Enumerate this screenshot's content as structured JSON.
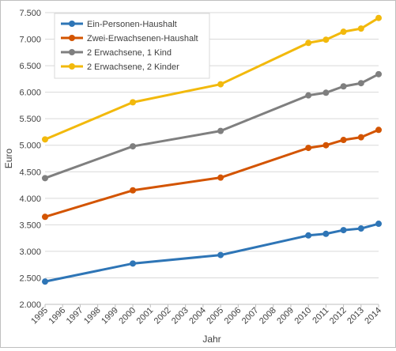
{
  "chart_data": {
    "type": "line",
    "title": "",
    "xlabel": "Jahr",
    "ylabel": "Euro",
    "x_ticks": [
      "1995",
      "1996",
      "1997",
      "1998",
      "1999",
      "2000",
      "2001",
      "2002",
      "2003",
      "2004",
      "2005",
      "2006",
      "2007",
      "2008",
      "2009",
      "2010",
      "2011",
      "2012",
      "2013",
      "2014"
    ],
    "y_ticks": [
      "2.000",
      "2.500",
      "3.000",
      "3.500",
      "4.000",
      "4.500",
      "5.000",
      "5.500",
      "6.000",
      "6.500",
      "7.000",
      "7.500"
    ],
    "ylim": [
      2000,
      7500
    ],
    "xlim": [
      1995,
      2014
    ],
    "grid": "horizontal",
    "legend_position": "top-left",
    "series": [
      {
        "name": "Ein-Personen-Haushalt",
        "color": "#2e75b6",
        "x": [
          1995,
          2000,
          2005,
          2010,
          2011,
          2012,
          2013,
          2014
        ],
        "values": [
          2430,
          2770,
          2930,
          3300,
          3330,
          3400,
          3430,
          3520
        ]
      },
      {
        "name": "Zwei-Erwachsenen-Haushalt",
        "color": "#d35400",
        "x": [
          1995,
          2000,
          2005,
          2010,
          2011,
          2012,
          2013,
          2014
        ],
        "values": [
          3650,
          4150,
          4390,
          4950,
          5000,
          5100,
          5150,
          5290
        ]
      },
      {
        "name": "2 Erwachsene, 1 Kind",
        "color": "#7f7f7f",
        "x": [
          1995,
          2000,
          2005,
          2010,
          2011,
          2012,
          2013,
          2014
        ],
        "values": [
          4380,
          4980,
          5270,
          5940,
          5990,
          6110,
          6170,
          6340
        ]
      },
      {
        "name": "2 Erwachsene, 2 Kinder",
        "color": "#f2b90c",
        "x": [
          1995,
          2000,
          2005,
          2010,
          2011,
          2012,
          2013,
          2014
        ],
        "values": [
          5110,
          5810,
          6150,
          6930,
          6990,
          7140,
          7200,
          7400
        ]
      }
    ]
  }
}
